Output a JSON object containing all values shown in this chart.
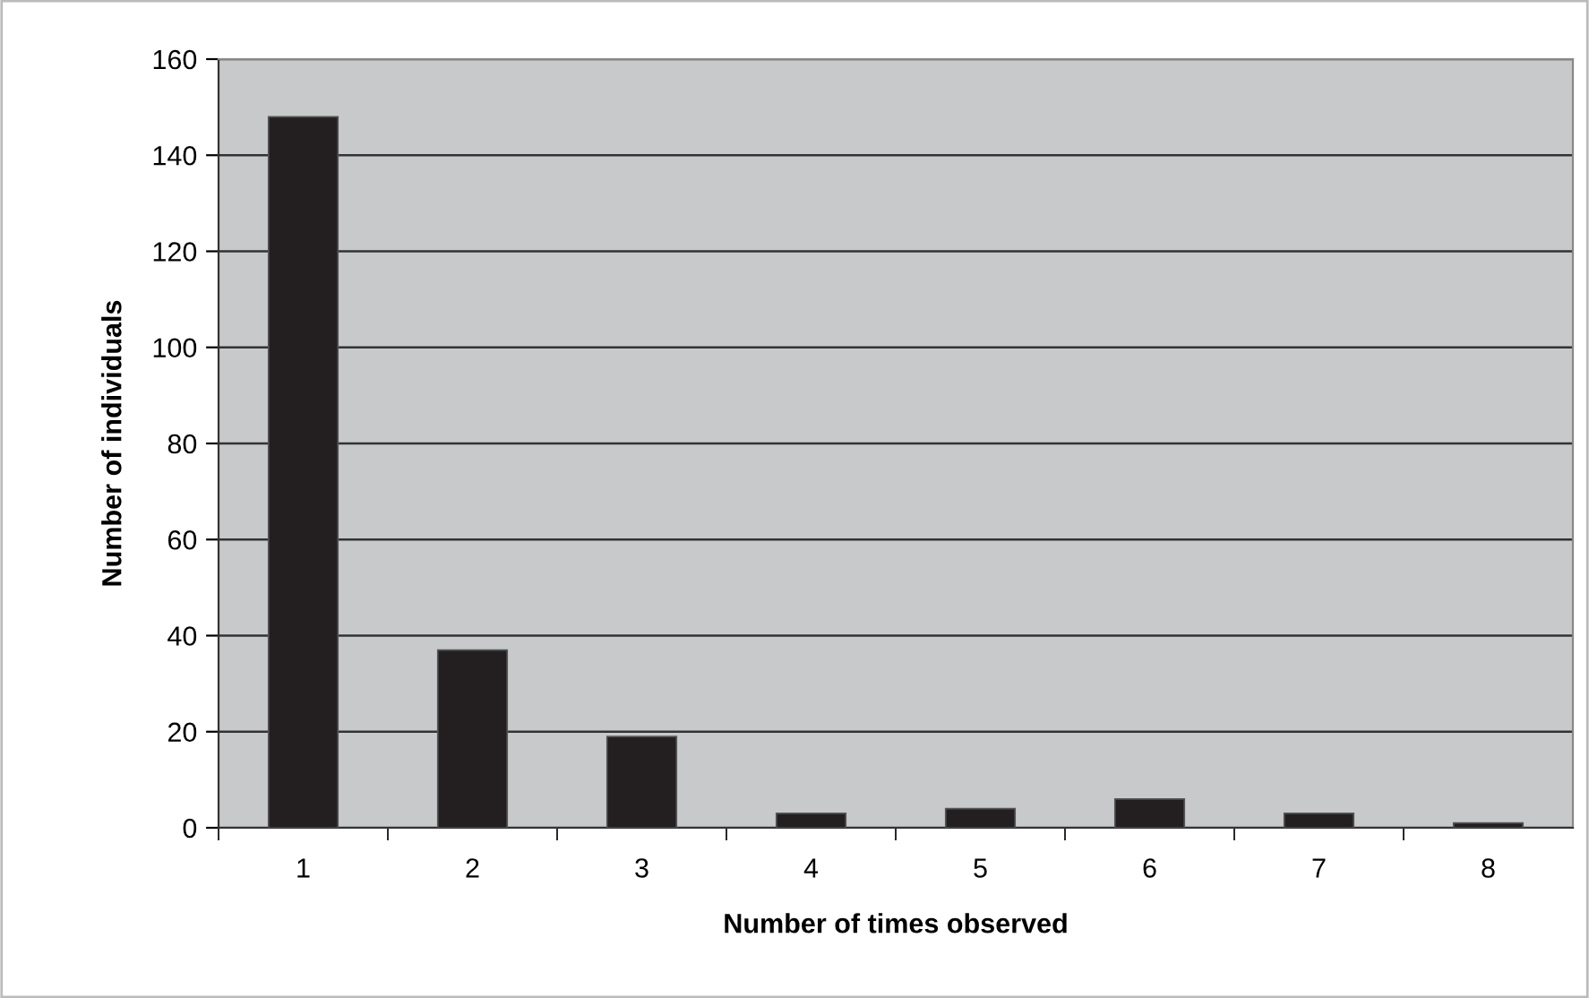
{
  "chart_data": {
    "type": "bar",
    "xlabel": "Number of times observed",
    "ylabel": "Number of individuals",
    "categories": [
      "1",
      "2",
      "3",
      "4",
      "5",
      "6",
      "7",
      "8"
    ],
    "values": [
      148,
      37,
      19,
      3,
      4,
      6,
      3,
      1
    ],
    "color": "#231f20",
    "ylim": [
      0,
      160
    ],
    "yticks": [
      0,
      20,
      40,
      60,
      80,
      100,
      120,
      140,
      160
    ],
    "grid": "y"
  }
}
